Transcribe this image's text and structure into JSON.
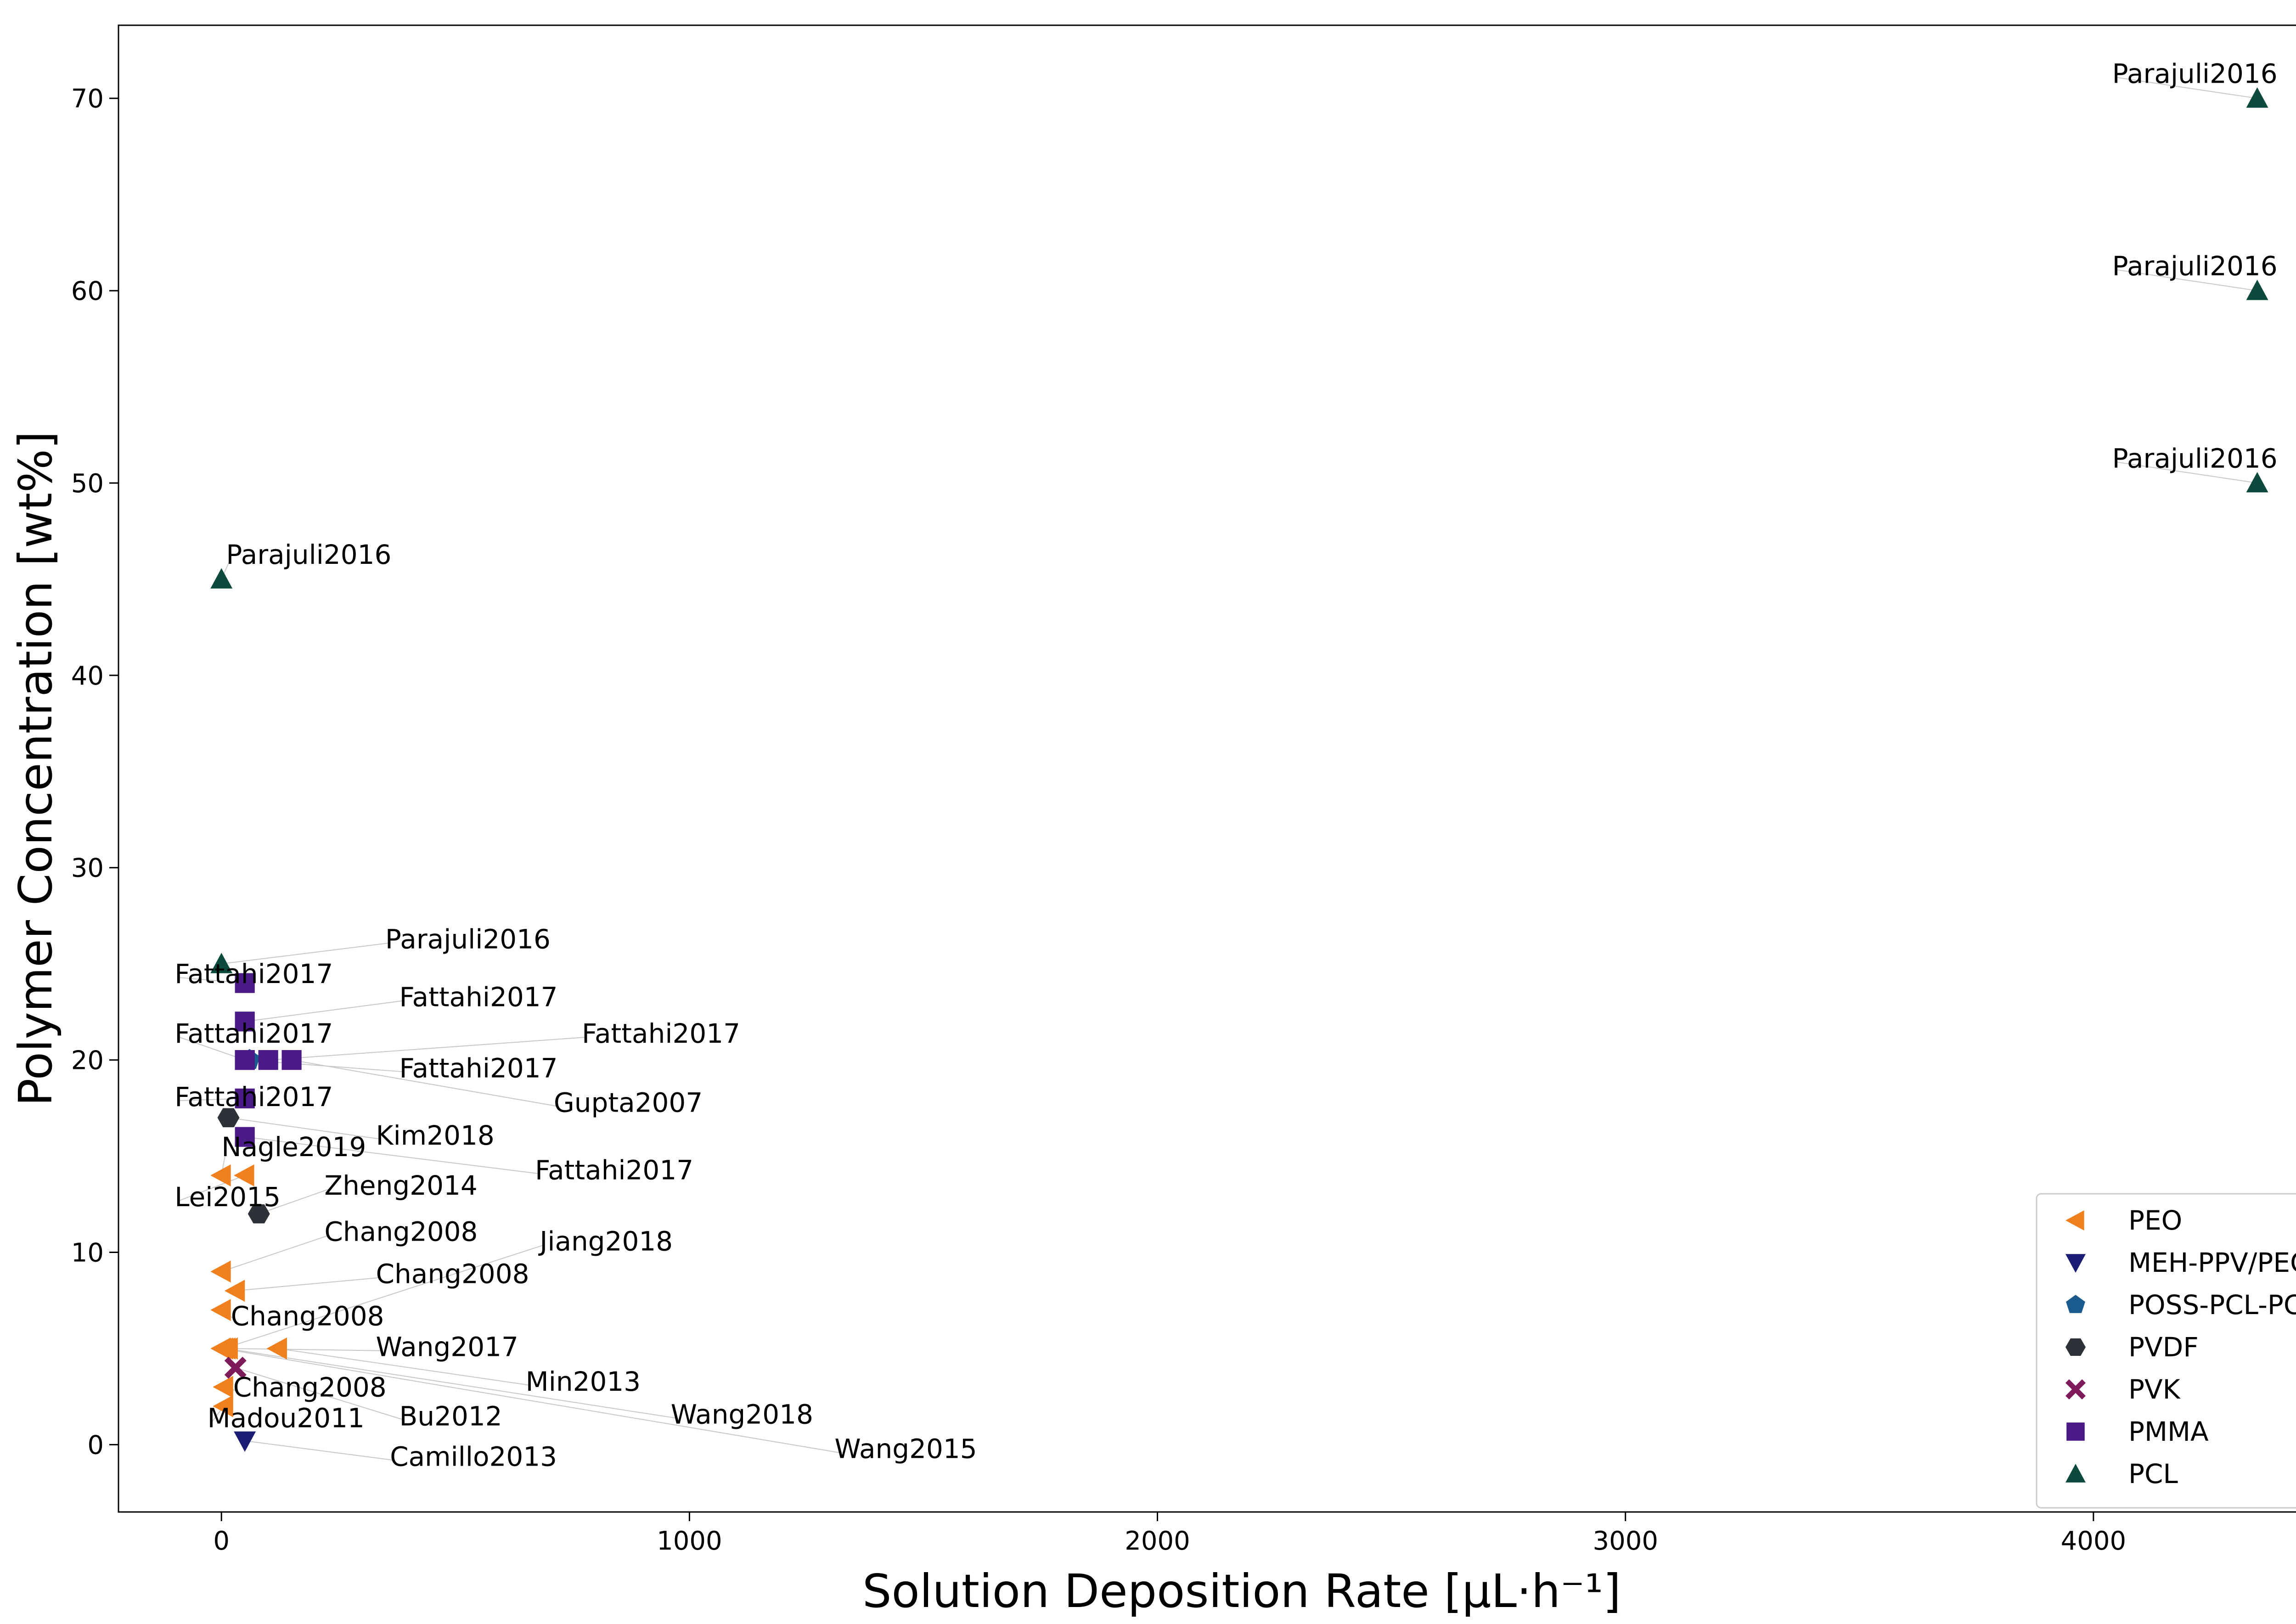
{
  "chart_data": {
    "type": "scatter",
    "xlabel": "Solution Deposition Rate [μL·h⁻¹]",
    "ylabel": "Polymer Concentration [wt%]",
    "xlim": [
      -220,
      4580
    ],
    "ylim": [
      -3.5,
      73.8
    ],
    "xticks": [
      "0",
      "1000",
      "2000",
      "3000",
      "4000"
    ],
    "xtick_values": [
      0,
      1000,
      2000,
      3000,
      4000
    ],
    "yticks": [
      "0",
      "10",
      "20",
      "30",
      "40",
      "50",
      "60",
      "70"
    ],
    "ytick_values": [
      0,
      10,
      20,
      30,
      40,
      50,
      60,
      70
    ],
    "grid": false,
    "legend_position": "lower-right",
    "series": [
      {
        "name": "PEO",
        "marker": "triangle-left",
        "color": "#f07f1e",
        "points": [
          {
            "x": 0,
            "y": 14,
            "label": "Nagle2019",
            "lx": 0,
            "ly": 15.0
          },
          {
            "x": 50,
            "y": 14,
            "label": "Lei2015",
            "lx": -100,
            "ly": 12.4
          },
          {
            "x": 0,
            "y": 9,
            "label": "Chang2008",
            "lx": 220,
            "ly": 10.6
          },
          {
            "x": 30,
            "y": 8,
            "label": "Chang2008",
            "lx": 330,
            "ly": 8.4
          },
          {
            "x": 0,
            "y": 7,
            "label": "Chang2008",
            "lx": 20,
            "ly": 6.2
          },
          {
            "x": 5,
            "y": 5,
            "label": "Jiang2018",
            "lx": 680,
            "ly": 10.1
          },
          {
            "x": 15,
            "y": 5,
            "label": "Wang2017",
            "lx": 330,
            "ly": 4.6
          },
          {
            "x": 120,
            "y": 5,
            "label": "Min2013",
            "lx": 650,
            "ly": 2.8
          },
          {
            "x": 10,
            "y": 5,
            "label": "Wang2018",
            "lx": 960,
            "ly": 1.1
          },
          {
            "x": 5,
            "y": 3,
            "label": "Chang2008",
            "lx": 25,
            "ly": 2.5
          },
          {
            "x": 5,
            "y": 2,
            "label": "Madou2011",
            "lx": -30,
            "ly": 0.9
          },
          {
            "x": 0,
            "y": 5,
            "label": "Wang2015",
            "lx": 1310,
            "ly": -0.7
          }
        ]
      },
      {
        "name": "MEH-PPV/PEO",
        "marker": "triangle-down",
        "color": "#1a1d74",
        "points": [
          {
            "x": 50,
            "y": 0.2,
            "label": "Camillo2013",
            "lx": 360,
            "ly": -1.1
          }
        ]
      },
      {
        "name": "POSS-PCL-PCU",
        "marker": "pentagon",
        "color": "#1a5a8c",
        "points": [
          {
            "x": 60,
            "y": 20,
            "label": "",
            "lx": 0,
            "ly": 0
          }
        ]
      },
      {
        "name": "PVDF",
        "marker": "hexagon",
        "color": "#2d3138",
        "points": [
          {
            "x": 15,
            "y": 17,
            "label": "Kim2018",
            "lx": 330,
            "ly": 15.6
          },
          {
            "x": 80,
            "y": 12,
            "label": "Zheng2014",
            "lx": 220,
            "ly": 13.0
          }
        ]
      },
      {
        "name": "PVK",
        "marker": "x",
        "color": "#7d1a5a",
        "points": [
          {
            "x": 30,
            "y": 4,
            "label": "Bu2012",
            "lx": 380,
            "ly": 1.0
          }
        ]
      },
      {
        "name": "PMMA",
        "marker": "square",
        "color": "#4a1a86",
        "points": [
          {
            "x": 50,
            "y": 24,
            "label": "Fattahi2017",
            "lx": -100,
            "ly": 24.0
          },
          {
            "x": 50,
            "y": 22,
            "label": "Fattahi2017",
            "lx": 380,
            "ly": 22.8
          },
          {
            "x": 50,
            "y": 20,
            "label": "Fattahi2017",
            "lx": -100,
            "ly": 20.9
          },
          {
            "x": 100,
            "y": 20,
            "label": "Fattahi2017",
            "lx": 770,
            "ly": 20.9
          },
          {
            "x": 150,
            "y": 20,
            "label": "Gupta2007",
            "lx": 710,
            "ly": 17.3
          },
          {
            "x": 50,
            "y": 20,
            "label": "Fattahi2017",
            "lx": 380,
            "ly": 19.1
          },
          {
            "x": 50,
            "y": 18,
            "label": "Fattahi2017",
            "lx": -100,
            "ly": 17.6
          },
          {
            "x": 50,
            "y": 16,
            "label": "Fattahi2017",
            "lx": 670,
            "ly": 13.8
          }
        ]
      },
      {
        "name": "PCL",
        "marker": "triangle-up",
        "color": "#0c4a3d",
        "points": [
          {
            "x": 0,
            "y": 45,
            "label": "Parajuli2016",
            "lx": 10,
            "ly": 45.8
          },
          {
            "x": 0,
            "y": 25,
            "label": "Parajuli2016",
            "lx": 350,
            "ly": 25.8
          },
          {
            "x": 4350,
            "y": 70,
            "label": "Parajuli2016",
            "lx": 4040,
            "ly": 70.8
          },
          {
            "x": 4350,
            "y": 60,
            "label": "Parajuli2016",
            "lx": 4040,
            "ly": 60.8
          },
          {
            "x": 4350,
            "y": 50,
            "label": "Parajuli2016",
            "lx": 4040,
            "ly": 50.8
          }
        ]
      }
    ]
  }
}
